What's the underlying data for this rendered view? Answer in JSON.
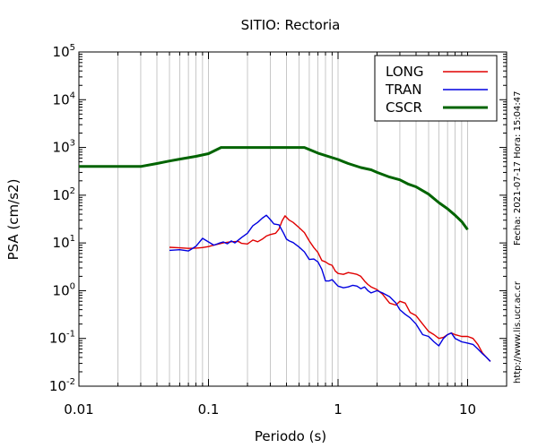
{
  "chart_data": {
    "type": "line",
    "title": "SITIO: Rectoria",
    "xlabel": "Periodo (s)",
    "ylabel": "PSA (cm/s2)",
    "x_scale": "log",
    "y_scale": "log",
    "xlim": [
      0.01,
      20
    ],
    "ylim": [
      0.01,
      100000
    ],
    "x_ticks": [
      {
        "value": 0.01,
        "label": "0.01"
      },
      {
        "value": 0.1,
        "label": "0.1"
      },
      {
        "value": 1,
        "label": "1"
      },
      {
        "value": 10,
        "label": "10"
      }
    ],
    "y_ticks": [
      {
        "value": 0.01,
        "base": "10",
        "exp": "-2"
      },
      {
        "value": 0.1,
        "base": "10",
        "exp": "-1"
      },
      {
        "value": 1,
        "base": "10",
        "exp": "0"
      },
      {
        "value": 10,
        "base": "10",
        "exp": "1"
      },
      {
        "value": 100,
        "base": "10",
        "exp": "2"
      },
      {
        "value": 1000,
        "base": "10",
        "exp": "3"
      },
      {
        "value": 10000,
        "base": "10",
        "exp": "4"
      },
      {
        "value": 100000,
        "base": "10",
        "exp": "5"
      }
    ],
    "grid": "vertical-minor",
    "legend_position": "top-right",
    "series": [
      {
        "name": "LONG",
        "color": "#e00000",
        "width": 1.4,
        "points": [
          [
            0.05,
            8.1
          ],
          [
            0.06,
            7.9
          ],
          [
            0.07,
            7.7
          ],
          [
            0.08,
            7.8
          ],
          [
            0.09,
            8.0
          ],
          [
            0.1,
            8.4
          ],
          [
            0.11,
            9.0
          ],
          [
            0.12,
            9.5
          ],
          [
            0.13,
            10.0
          ],
          [
            0.15,
            10.6
          ],
          [
            0.17,
            10.8
          ],
          [
            0.18,
            9.8
          ],
          [
            0.2,
            9.5
          ],
          [
            0.21,
            10.5
          ],
          [
            0.22,
            11.5
          ],
          [
            0.24,
            10.6
          ],
          [
            0.26,
            12.0
          ],
          [
            0.28,
            14.0
          ],
          [
            0.3,
            15.0
          ],
          [
            0.33,
            16.0
          ],
          [
            0.35,
            19.5
          ],
          [
            0.37,
            29.0
          ],
          [
            0.39,
            37.0
          ],
          [
            0.42,
            30.0
          ],
          [
            0.45,
            27.0
          ],
          [
            0.5,
            21.0
          ],
          [
            0.55,
            16.5
          ],
          [
            0.6,
            11.0
          ],
          [
            0.65,
            8.0
          ],
          [
            0.7,
            6.3
          ],
          [
            0.75,
            4.3
          ],
          [
            0.8,
            4.0
          ],
          [
            0.85,
            3.6
          ],
          [
            0.9,
            3.4
          ],
          [
            0.95,
            2.6
          ],
          [
            1.0,
            2.3
          ],
          [
            1.1,
            2.2
          ],
          [
            1.2,
            2.4
          ],
          [
            1.3,
            2.3
          ],
          [
            1.4,
            2.2
          ],
          [
            1.5,
            2.0
          ],
          [
            1.6,
            1.6
          ],
          [
            1.7,
            1.35
          ],
          [
            1.8,
            1.2
          ],
          [
            2.0,
            1.05
          ],
          [
            2.2,
            0.85
          ],
          [
            2.5,
            0.55
          ],
          [
            2.8,
            0.5
          ],
          [
            3.0,
            0.6
          ],
          [
            3.3,
            0.55
          ],
          [
            3.6,
            0.35
          ],
          [
            4.0,
            0.3
          ],
          [
            4.5,
            0.2
          ],
          [
            5.0,
            0.14
          ],
          [
            5.5,
            0.12
          ],
          [
            6.0,
            0.1
          ],
          [
            6.5,
            0.105
          ],
          [
            7.0,
            0.12
          ],
          [
            7.5,
            0.13
          ],
          [
            8.0,
            0.12
          ],
          [
            9.0,
            0.11
          ],
          [
            10.0,
            0.11
          ],
          [
            11.0,
            0.1
          ],
          [
            12.0,
            0.075
          ],
          [
            13.0,
            0.05
          ],
          [
            14.0,
            0.04
          ],
          [
            15.0,
            0.033
          ]
        ]
      },
      {
        "name": "TRAN",
        "color": "#0000e0",
        "width": 1.4,
        "points": [
          [
            0.05,
            7.0
          ],
          [
            0.06,
            7.2
          ],
          [
            0.07,
            6.8
          ],
          [
            0.08,
            8.5
          ],
          [
            0.09,
            12.5
          ],
          [
            0.1,
            10.5
          ],
          [
            0.11,
            9.0
          ],
          [
            0.12,
            9.8
          ],
          [
            0.13,
            10.5
          ],
          [
            0.14,
            9.6
          ],
          [
            0.15,
            11.0
          ],
          [
            0.16,
            10.0
          ],
          [
            0.18,
            13.0
          ],
          [
            0.2,
            16.0
          ],
          [
            0.22,
            23.0
          ],
          [
            0.24,
            27.0
          ],
          [
            0.26,
            33.0
          ],
          [
            0.28,
            38.0
          ],
          [
            0.3,
            31.0
          ],
          [
            0.32,
            25.0
          ],
          [
            0.35,
            24.0
          ],
          [
            0.38,
            16.0
          ],
          [
            0.4,
            12.0
          ],
          [
            0.42,
            11.0
          ],
          [
            0.45,
            10.2
          ],
          [
            0.5,
            8.2
          ],
          [
            0.55,
            6.5
          ],
          [
            0.6,
            4.5
          ],
          [
            0.65,
            4.6
          ],
          [
            0.7,
            4.0
          ],
          [
            0.75,
            2.8
          ],
          [
            0.8,
            1.6
          ],
          [
            0.85,
            1.6
          ],
          [
            0.9,
            1.7
          ],
          [
            1.0,
            1.25
          ],
          [
            1.1,
            1.15
          ],
          [
            1.2,
            1.2
          ],
          [
            1.3,
            1.3
          ],
          [
            1.4,
            1.25
          ],
          [
            1.5,
            1.1
          ],
          [
            1.6,
            1.2
          ],
          [
            1.7,
            1.0
          ],
          [
            1.8,
            0.9
          ],
          [
            2.0,
            1.0
          ],
          [
            2.2,
            0.9
          ],
          [
            2.5,
            0.75
          ],
          [
            2.8,
            0.55
          ],
          [
            3.0,
            0.4
          ],
          [
            3.3,
            0.32
          ],
          [
            3.6,
            0.27
          ],
          [
            4.0,
            0.2
          ],
          [
            4.5,
            0.12
          ],
          [
            5.0,
            0.11
          ],
          [
            5.5,
            0.085
          ],
          [
            6.0,
            0.07
          ],
          [
            6.5,
            0.1
          ],
          [
            7.0,
            0.12
          ],
          [
            7.5,
            0.13
          ],
          [
            8.0,
            0.1
          ],
          [
            9.0,
            0.085
          ],
          [
            10.0,
            0.08
          ],
          [
            11.0,
            0.075
          ],
          [
            12.0,
            0.06
          ],
          [
            13.0,
            0.048
          ],
          [
            14.0,
            0.04
          ],
          [
            15.0,
            0.033
          ]
        ]
      },
      {
        "name": "CSCR",
        "color": "#006400",
        "width": 3,
        "points": [
          [
            0.01,
            400
          ],
          [
            0.03,
            400
          ],
          [
            0.04,
            460
          ],
          [
            0.05,
            520
          ],
          [
            0.06,
            570
          ],
          [
            0.08,
            650
          ],
          [
            0.1,
            740
          ],
          [
            0.125,
            1000
          ],
          [
            0.55,
            1000
          ],
          [
            0.7,
            760
          ],
          [
            1.0,
            560
          ],
          [
            1.2,
            460
          ],
          [
            1.5,
            380
          ],
          [
            1.8,
            340
          ],
          [
            2.0,
            300
          ],
          [
            2.5,
            240
          ],
          [
            3.0,
            210
          ],
          [
            3.5,
            170
          ],
          [
            4.0,
            150
          ],
          [
            5.0,
            105
          ],
          [
            6.0,
            70
          ],
          [
            7.0,
            52
          ],
          [
            8.0,
            38
          ],
          [
            9.0,
            28
          ],
          [
            10.0,
            19
          ]
        ]
      }
    ]
  },
  "side_text": {
    "date": "Fecha: 2021-07-17  Hora: 15:04:47",
    "url": "http://www.lis.ucr.ac.cr"
  }
}
